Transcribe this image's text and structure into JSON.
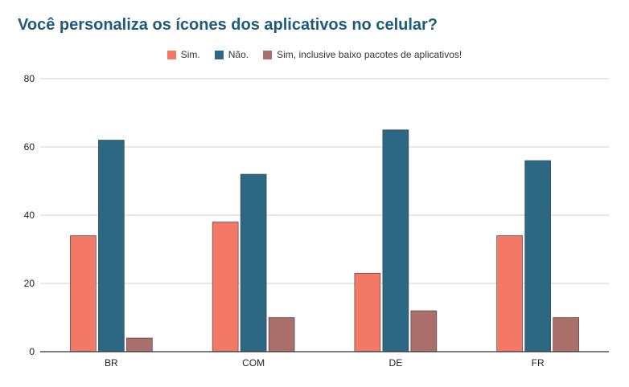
{
  "chart_data": {
    "type": "bar",
    "title": "Você personaliza os ícones dos aplicativos no celular?",
    "categories": [
      "BR",
      "COM",
      "DE",
      "FR"
    ],
    "series": [
      {
        "name": "Sim.",
        "color": "#f47866",
        "values": [
          34,
          38,
          23,
          34
        ]
      },
      {
        "name": "Não.",
        "color": "#2c6784",
        "values": [
          62,
          52,
          65,
          56
        ]
      },
      {
        "name": "Sim, inclusive baixo pacotes de aplicativos!",
        "color": "#aa6f6b",
        "values": [
          4,
          10,
          12,
          10
        ]
      }
    ],
    "ylim": [
      0,
      80
    ],
    "yticks": [
      0,
      20,
      40,
      60,
      80
    ],
    "grid": true,
    "legend_position": "top-center"
  }
}
